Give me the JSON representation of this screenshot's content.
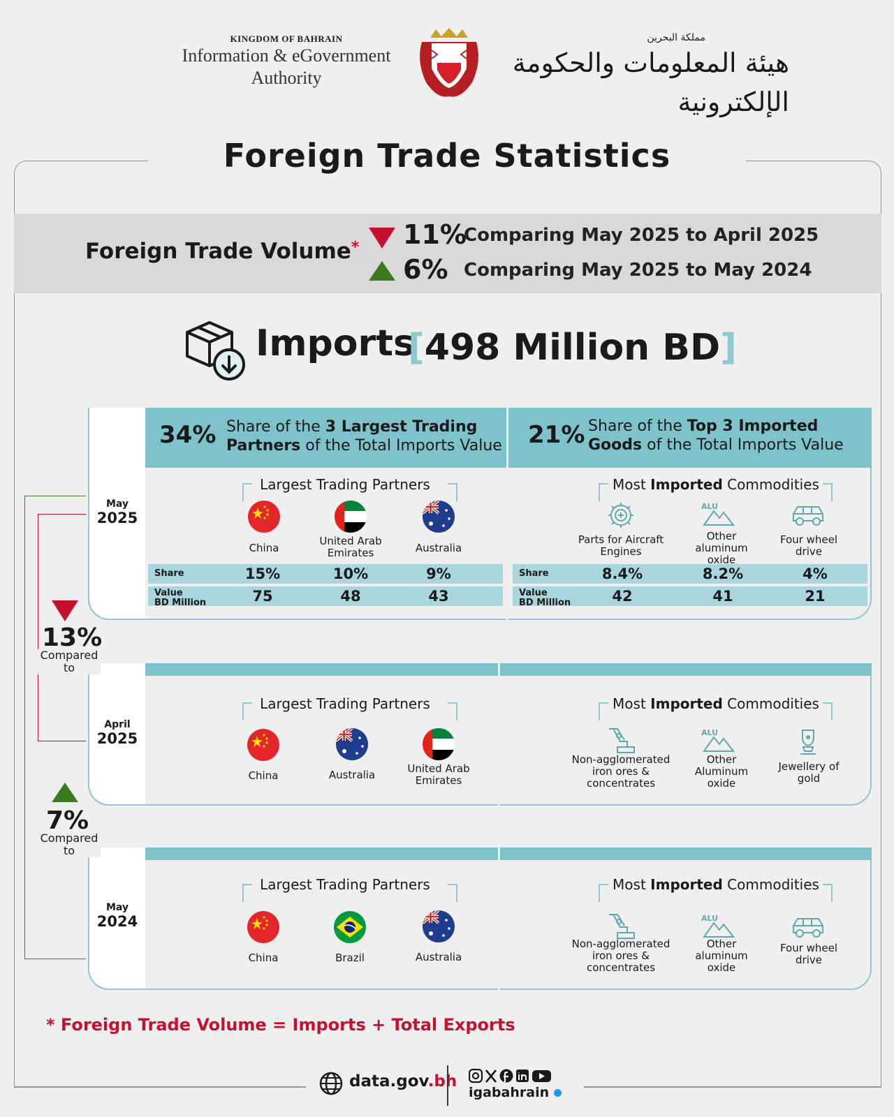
{
  "header": {
    "kingdom": "KINGDOM OF BAHRAIN",
    "authority_line1": "Information & eGovernment",
    "authority_line2": "Authority",
    "ar_kingdom": "مملكة البحرين",
    "ar_authority": "هيئة المعلومات والحكومة الإلكترونية"
  },
  "title": "Foreign Trade Statistics",
  "volume": {
    "label": "Foreign Trade Volume",
    "star": "*",
    "changes": [
      {
        "direction": "down",
        "value": "11%",
        "text": "Comparing May 2025 to April 2025"
      },
      {
        "direction": "up",
        "value": "6%",
        "text": "Comparing May 2025 to May 2024"
      }
    ]
  },
  "imports": {
    "label": "Imports",
    "open_bracket": "[",
    "value": "498 Million BD",
    "close_bracket": "]"
  },
  "may2025": {
    "month": "May",
    "year": "2025",
    "partners_share": {
      "value": "34%",
      "pre": "Share of the ",
      "bold": "3 Largest Trading Partners",
      "post": " of the Total Imports Value"
    },
    "goods_share": {
      "value": "21%",
      "pre": "Share of the ",
      "bold": "Top 3 Imported Goods",
      "post": " of the Total Imports Value"
    },
    "partners_title": "Largest Trading Partners",
    "commodities_title_pre": "Most ",
    "commodities_title_bold": "Imported",
    "commodities_title_post": " Commodities",
    "partners": [
      {
        "name": "China",
        "flag": "china-flag",
        "share": "15%",
        "value": "75"
      },
      {
        "name": "United Arab Emirates",
        "flag": "uae-flag",
        "share": "10%",
        "value": "48"
      },
      {
        "name": "Australia",
        "flag": "australia-flag",
        "share": "9%",
        "value": "43"
      }
    ],
    "commodities": [
      {
        "name": "Parts for Aircraft Engines",
        "icon": "engine-part-icon",
        "share": "8.4%",
        "value": "42"
      },
      {
        "name": "Other aluminum oxide",
        "icon": "aluminum-icon",
        "share": "8.2%",
        "value": "41"
      },
      {
        "name": "Four wheel drive",
        "icon": "suv-icon",
        "share": "4%",
        "value": "21"
      }
    ],
    "share_label": "Share",
    "value_label_1": "Value",
    "value_label_2": "BD Million"
  },
  "april2025": {
    "month": "April",
    "year": "2025",
    "partners_title": "Largest Trading Partners",
    "commodities_title_pre": "Most ",
    "commodities_title_bold": "Imported",
    "commodities_title_post": " Commodities",
    "partners": [
      {
        "name": "China",
        "flag": "china-flag"
      },
      {
        "name": "Australia",
        "flag": "australia-flag"
      },
      {
        "name": "United Arab Emirates",
        "flag": "uae-flag"
      }
    ],
    "commodities": [
      {
        "name": "Non-agglomerated iron ores & concentrates",
        "icon": "mining-icon"
      },
      {
        "name": "Other Aluminum oxide",
        "icon": "aluminum-icon"
      },
      {
        "name": "Jewellery of gold",
        "icon": "jewellery-icon"
      }
    ]
  },
  "may2024": {
    "month": "May",
    "year": "2024",
    "partners_title": "Largest Trading Partners",
    "commodities_title_pre": "Most ",
    "commodities_title_bold": "Imported",
    "commodities_title_post": " Commodities",
    "partners": [
      {
        "name": "China",
        "flag": "china-flag"
      },
      {
        "name": "Brazil",
        "flag": "brazil-flag"
      },
      {
        "name": "Australia",
        "flag": "australia-flag"
      }
    ],
    "commodities": [
      {
        "name": "Non-agglomerated iron ores & concentrates",
        "icon": "mining-icon"
      },
      {
        "name": "Other aluminum oxide",
        "icon": "aluminum-icon"
      },
      {
        "name": "Four wheel drive",
        "icon": "suv-icon"
      }
    ]
  },
  "comparisons": [
    {
      "direction": "down",
      "value": "13%",
      "text": "Compared to"
    },
    {
      "direction": "up",
      "value": "7%",
      "text": "Compared to"
    }
  ],
  "footnote": "*  Foreign Trade Volume = Imports + Total Exports",
  "footer": {
    "site_main": "data.gov",
    "site_tld": ".bh",
    "handle": "igabahrain"
  },
  "colors": {
    "red": "#c8102e",
    "green": "#3c7a1e",
    "teal": "#7ec3cc",
    "light_teal": "#a9d6dc"
  }
}
